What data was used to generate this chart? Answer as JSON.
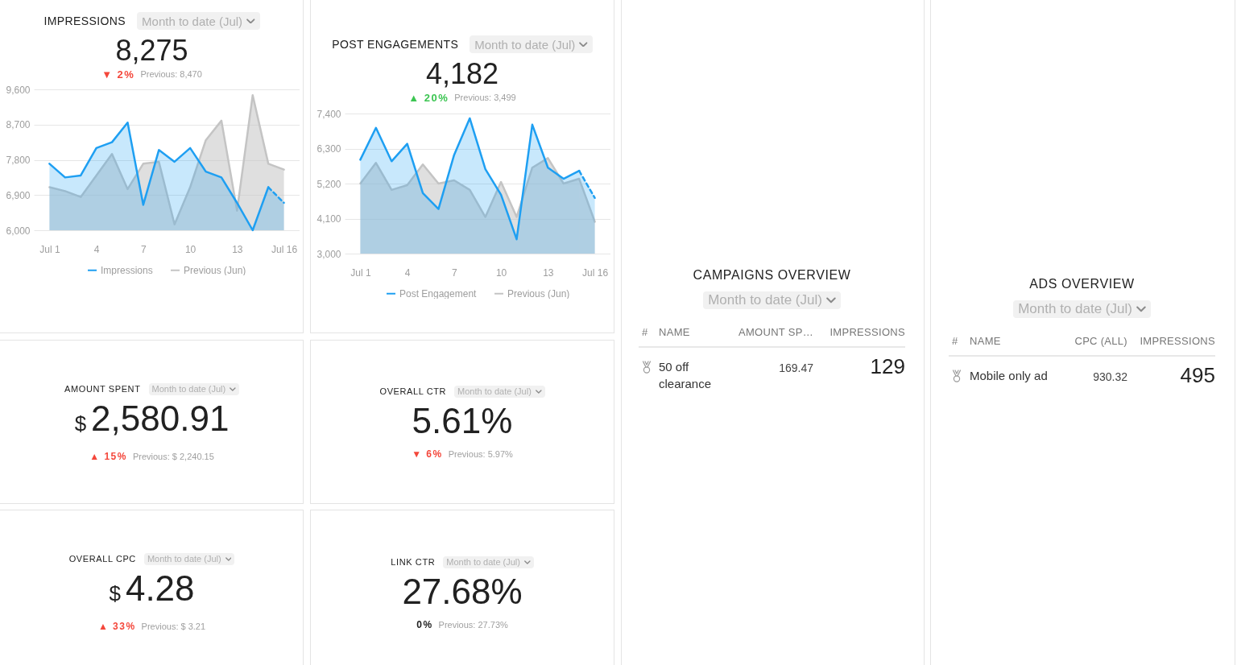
{
  "chart_data": [
    {
      "type": "other",
      "title": "IMPRESSIONS",
      "subtitle": "Month to date (Jul)",
      "annotations": [
        "8,275",
        "▼ 2%",
        "Previous: 8,470"
      ],
      "color": "#f4473b"
    },
    {
      "type": "area",
      "x": [
        "--07-01",
        "--07-02",
        "--07-03",
        "--07-04",
        "--07-05",
        "--07-06",
        "--07-07",
        "--07-08",
        "--07-09",
        "--07-10",
        "--07-11",
        "--07-12",
        "--07-13",
        "--07-14",
        "--07-15",
        "--07-16"
      ],
      "xlim": [
        "--06-30",
        "--07-17"
      ],
      "xticks": [
        {
          "value": "--07-01",
          "label": "Jul 1"
        },
        {
          "value": "--07-04",
          "label": "4"
        },
        {
          "value": "--07-07",
          "label": "7"
        },
        {
          "value": "--07-10",
          "label": "10"
        },
        {
          "value": "--07-13",
          "label": "13"
        },
        {
          "value": "--07-16",
          "label": "Jul 16"
        }
      ],
      "ylim": [
        6000,
        9600
      ],
      "yticks": [
        {
          "value": 6000,
          "label": "6,000"
        },
        {
          "value": 6900,
          "label": "6,900"
        },
        {
          "value": 7800,
          "label": "7,800"
        },
        {
          "value": 8700,
          "label": "8,700"
        },
        {
          "value": 9600,
          "label": "9,600"
        }
      ],
      "grid": "y",
      "legend": "bottom",
      "series": [
        {
          "name": "Impressions",
          "color": "#1e9ff2",
          "values": [
            7700,
            7350,
            7400,
            8100,
            8250,
            8750,
            6650,
            8050,
            7750,
            8100,
            7500,
            7350,
            6700,
            6000,
            7100,
            null
          ]
        },
        {
          "color": "#1e9ff2",
          "line_style": "dashed",
          "values": [
            null,
            null,
            null,
            null,
            null,
            null,
            null,
            null,
            null,
            null,
            null,
            null,
            null,
            null,
            7100,
            6700
          ]
        },
        {
          "name": "Previous (Jun)",
          "color": "#c4c4c4",
          "values": [
            7100,
            7000,
            6850,
            7400,
            7950,
            7050,
            7700,
            7750,
            6150,
            7100,
            8300,
            8800,
            6500,
            9450,
            7700,
            7550
          ]
        }
      ]
    },
    {
      "type": "other",
      "title": "POST ENGAGEMENTS",
      "subtitle": "Month to date (Jul)",
      "annotations": [
        "4,182",
        "▲ 20%",
        "Previous: 3,499"
      ],
      "color": "#3cc552"
    },
    {
      "type": "area",
      "x": [
        "--07-01",
        "--07-02",
        "--07-03",
        "--07-04",
        "--07-05",
        "--07-06",
        "--07-07",
        "--07-08",
        "--07-09",
        "--07-10",
        "--07-11",
        "--07-12",
        "--07-13",
        "--07-14",
        "--07-15",
        "--07-16"
      ],
      "xlim": [
        "--06-30",
        "--07-17"
      ],
      "xticks": [
        {
          "value": "--07-01",
          "label": "Jul 1"
        },
        {
          "value": "--07-04",
          "label": "4"
        },
        {
          "value": "--07-07",
          "label": "7"
        },
        {
          "value": "--07-10",
          "label": "10"
        },
        {
          "value": "--07-13",
          "label": "13"
        },
        {
          "value": "--07-16",
          "label": "Jul 16"
        }
      ],
      "ylim": [
        3000,
        7400
      ],
      "yticks": [
        {
          "value": 3000,
          "label": "3,000"
        },
        {
          "value": 4100,
          "label": "4,100"
        },
        {
          "value": 5200,
          "label": "5,200"
        },
        {
          "value": 6300,
          "label": "6,300"
        },
        {
          "value": 7400,
          "label": "7,400"
        }
      ],
      "grid": "y",
      "legend": "bottom",
      "series": [
        {
          "name": "Post Engagement",
          "color": "#1e9ff2",
          "values": [
            5950,
            6950,
            5900,
            6450,
            4900,
            4400,
            6100,
            7250,
            5650,
            4850,
            3450,
            7050,
            5700,
            5350,
            5600,
            null
          ]
        },
        {
          "color": "#1e9ff2",
          "line_style": "dashed",
          "values": [
            null,
            null,
            null,
            null,
            null,
            null,
            null,
            null,
            null,
            null,
            null,
            null,
            null,
            null,
            5600,
            4750
          ]
        },
        {
          "name": "Previous (Jun)",
          "color": "#c4c4c4",
          "values": [
            5200,
            5850,
            5000,
            5150,
            5800,
            5200,
            5300,
            5000,
            4150,
            5250,
            4150,
            5700,
            6000,
            5200,
            5350,
            4000
          ]
        }
      ]
    },
    {
      "type": "other",
      "title": "CAMPAIGNS OVERVIEW",
      "subtitle": "Month to date (Jul)",
      "categories": [
        "#",
        "NAME",
        "AMOUNT SP…",
        "IMPRESSIONS"
      ],
      "annotations": [
        "50 off clearance",
        "169.47",
        "129"
      ]
    },
    {
      "type": "other",
      "title": "ADS OVERVIEW",
      "subtitle": "Month to date (Jul)",
      "categories": [
        "#",
        "NAME",
        "CPC (ALL)",
        "IMPRESSIONS"
      ],
      "annotations": [
        "Mobile only ad",
        "930.32",
        "495"
      ]
    },
    {
      "type": "other",
      "title": "AMOUNT SPENT",
      "subtitle": "Month to date (Jul)",
      "annotations": [
        "$",
        "2,580.91",
        "▲ 15%",
        "Previous: $ 2,240.15"
      ],
      "color": "#f4473b"
    },
    {
      "type": "other",
      "title": "OVERALL CTR",
      "subtitle": "Month to date (Jul)",
      "annotations": [
        "5.61%",
        "▼ 6%",
        "Previous: 5.97%"
      ],
      "color": "#f4473b"
    },
    {
      "type": "other",
      "title": "OVERALL CPC",
      "subtitle": "Month to date (Jul)",
      "annotations": [
        "$",
        "4.28",
        "▲ 33%",
        "Previous: $ 3.21"
      ],
      "color": "#f4473b"
    },
    {
      "type": "other",
      "title": "LINK CTR",
      "subtitle": "Month to date (Jul)",
      "annotations": [
        "27.68%",
        "0%",
        "Previous: 27.73%"
      ],
      "color": "#212121"
    }
  ]
}
